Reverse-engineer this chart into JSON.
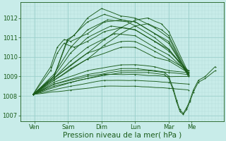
{
  "background_color": "#c8ece9",
  "grid_color_fine": "#b0ddd8",
  "grid_color_major": "#9acfca",
  "line_color": "#1a5c1a",
  "ylim": [
    1006.7,
    1012.8
  ],
  "xlim": [
    0.0,
    6.05
  ],
  "ylabel_ticks": [
    1007,
    1008,
    1009,
    1010,
    1011,
    1012
  ],
  "xtick_labels": [
    "Ven",
    "Sam",
    "Dim",
    "Lun",
    "Mar",
    "Me"
  ],
  "xtick_positions": [
    0.42,
    1.42,
    2.42,
    3.42,
    4.42,
    5.1
  ],
  "day_vlines": [
    0.42,
    1.42,
    2.42,
    3.42,
    4.42,
    5.0
  ],
  "xlabel": "Pression niveau de la mer( hPa )",
  "tick_fontsize": 6.0,
  "xlabel_fontsize": 7.5
}
